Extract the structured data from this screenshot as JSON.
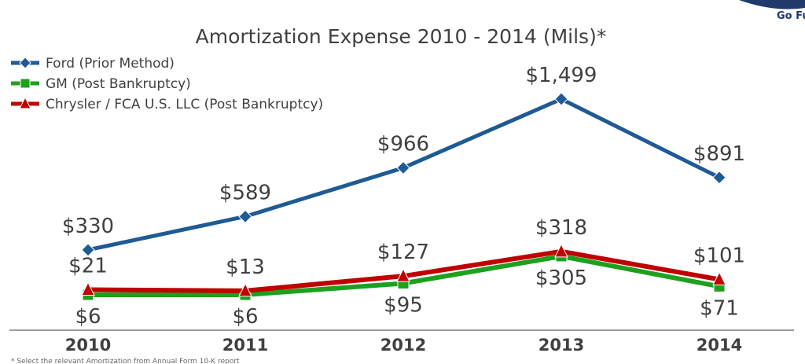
{
  "brand": {
    "text": "Go Fu"
  },
  "footnote": {
    "text": "* Select the relevant Amortization from Annual Form 10-K report"
  },
  "colors": {
    "ford": "#1f5a94",
    "gm": "#1ea01e",
    "chrysler": "#c00000",
    "axis": "#7f7f7f"
  },
  "chart_data": {
    "type": "line",
    "title": "Amortization Expense 2010 - 2014 (Mils)*",
    "xlabel": "",
    "ylabel": "",
    "categories": [
      "2010",
      "2011",
      "2012",
      "2013",
      "2014"
    ],
    "ylim": [
      0,
      1650
    ],
    "grid": false,
    "legend_position": "top-left",
    "series": [
      {
        "key": "ford",
        "name": "Ford (Prior Method)",
        "marker": "diamond",
        "values": [
          330,
          589,
          966,
          1499,
          891
        ],
        "labels": [
          "$330",
          "$589",
          "$966",
          "$1,499",
          "$891"
        ]
      },
      {
        "key": "gm",
        "name": "GM (Post Bankruptcy)",
        "marker": "square",
        "values": [
          6,
          6,
          95,
          305,
          71
        ],
        "labels": [
          "$6",
          "$6",
          "$95",
          "$305",
          "$71"
        ]
      },
      {
        "key": "chrysler",
        "name": "Chrysler / FCA U.S. LLC (Post Bankruptcy)",
        "marker": "triangle",
        "values": [
          21,
          13,
          127,
          318,
          101
        ],
        "labels": [
          "$21",
          "$13",
          "$127",
          "$318",
          "$101"
        ]
      }
    ]
  }
}
